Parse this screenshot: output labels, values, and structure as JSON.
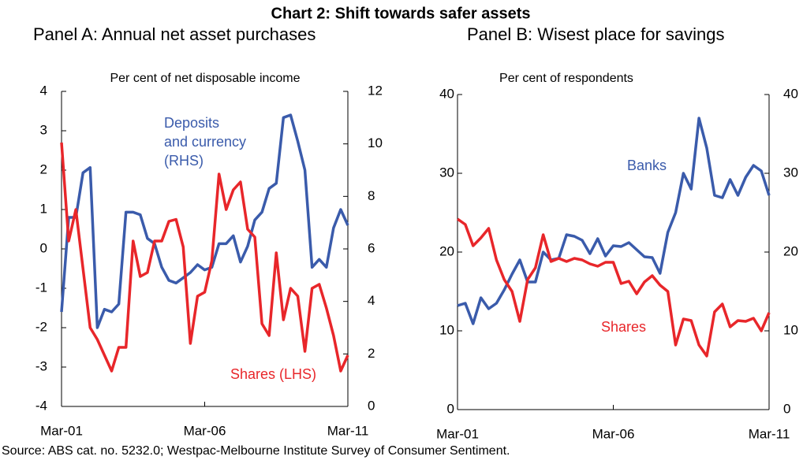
{
  "title": "Chart 2: Shift towards safer assets",
  "source": "Source: ABS cat. no. 5232.0; Westpac-Melbourne Institute Survey of Consumer Sentiment.",
  "chart_data": [
    {
      "type": "line",
      "title": "Panel A: Annual net asset purchases",
      "ylabel": "Per cent of net disposable income",
      "categories": [
        "Mar-01",
        null,
        null,
        null,
        null,
        null,
        null,
        null,
        null,
        null,
        null,
        null,
        null,
        null,
        null,
        null,
        null,
        null,
        null,
        null,
        "Mar-06",
        null,
        null,
        null,
        null,
        null,
        null,
        null,
        null,
        null,
        null,
        null,
        null,
        null,
        null,
        null,
        null,
        null,
        null,
        null,
        "Mar-11"
      ],
      "ylim": [
        -4,
        4
      ],
      "yticks": [
        -4,
        -3,
        -2,
        -1,
        0,
        1,
        2,
        3,
        4
      ],
      "y2lim": [
        0,
        12
      ],
      "y2ticks": [
        0,
        2,
        4,
        6,
        8,
        10,
        12
      ],
      "series": [
        {
          "name": "Deposits\nand currency\n(RHS)",
          "color": "#3a5bab",
          "axis": "y2",
          "values": [
            3.6,
            7.2,
            7.2,
            8.9,
            9.1,
            3.0,
            3.7,
            3.6,
            3.9,
            7.4,
            7.4,
            7.3,
            6.4,
            6.2,
            5.3,
            4.8,
            4.7,
            4.9,
            5.1,
            5.4,
            5.2,
            5.3,
            6.2,
            6.2,
            6.5,
            5.5,
            6.1,
            7.1,
            7.4,
            8.3,
            8.5,
            11.0,
            11.1,
            10.1,
            9.0,
            5.3,
            5.6,
            5.3,
            6.8,
            7.5,
            6.9
          ]
        },
        {
          "name": "Shares (LHS)",
          "color": "#e8262a",
          "values": [
            2.7,
            0.2,
            1.0,
            -0.5,
            -2.0,
            -2.3,
            -2.7,
            -3.1,
            -2.5,
            -2.5,
            0.2,
            -0.7,
            -0.6,
            0.2,
            0.2,
            0.7,
            0.75,
            0.05,
            -2.4,
            -1.2,
            -1.1,
            -0.3,
            1.9,
            1.0,
            1.5,
            1.7,
            0.5,
            0.3,
            -1.9,
            -2.2,
            -0.1,
            -1.8,
            -1.0,
            -1.2,
            -2.6,
            -1.0,
            -0.9,
            -1.5,
            -2.2,
            -3.1,
            -2.7
          ]
        }
      ]
    },
    {
      "type": "line",
      "title": "Panel B: Wisest place for savings",
      "ylabel": "Per cent of respondents",
      "categories": [
        "Mar-01",
        null,
        null,
        null,
        null,
        null,
        null,
        null,
        null,
        null,
        null,
        null,
        null,
        null,
        null,
        null,
        null,
        null,
        null,
        null,
        "Mar-06",
        null,
        null,
        null,
        null,
        null,
        null,
        null,
        null,
        null,
        null,
        null,
        null,
        null,
        null,
        null,
        null,
        null,
        null,
        null,
        "Mar-11"
      ],
      "ylim": [
        0,
        40
      ],
      "yticks": [
        0,
        10,
        20,
        30,
        40
      ],
      "y2lim": [
        0,
        40
      ],
      "y2ticks": [
        0,
        10,
        20,
        30,
        40
      ],
      "series": [
        {
          "name": "Banks",
          "color": "#3a5bab",
          "values": [
            13.2,
            13.5,
            10.9,
            14.2,
            12.8,
            13.5,
            15.2,
            17.2,
            19.0,
            16.2,
            16.2,
            20.0,
            19.0,
            19.2,
            22.2,
            22.0,
            21.5,
            19.8,
            21.7,
            19.5,
            20.8,
            20.7,
            21.2,
            20.3,
            19.4,
            19.3,
            17.3,
            22.5,
            25.0,
            30.0,
            28.0,
            37.0,
            33.2,
            27.2,
            26.9,
            29.2,
            27.2,
            29.5,
            31.0,
            30.3,
            27.2
          ]
        },
        {
          "name": "Shares",
          "color": "#e8262a",
          "values": [
            24.2,
            23.5,
            20.8,
            21.8,
            23.0,
            19.0,
            16.5,
            15.0,
            11.2,
            16.5,
            18.0,
            22.2,
            18.8,
            19.2,
            18.8,
            19.2,
            19.0,
            18.5,
            18.2,
            18.7,
            18.7,
            16.0,
            16.3,
            14.7,
            16.2,
            17.0,
            15.8,
            15.0,
            8.2,
            11.5,
            11.3,
            8.2,
            6.8,
            12.4,
            13.4,
            10.5,
            11.3,
            11.2,
            11.6,
            10.0,
            12.3
          ]
        }
      ]
    }
  ]
}
